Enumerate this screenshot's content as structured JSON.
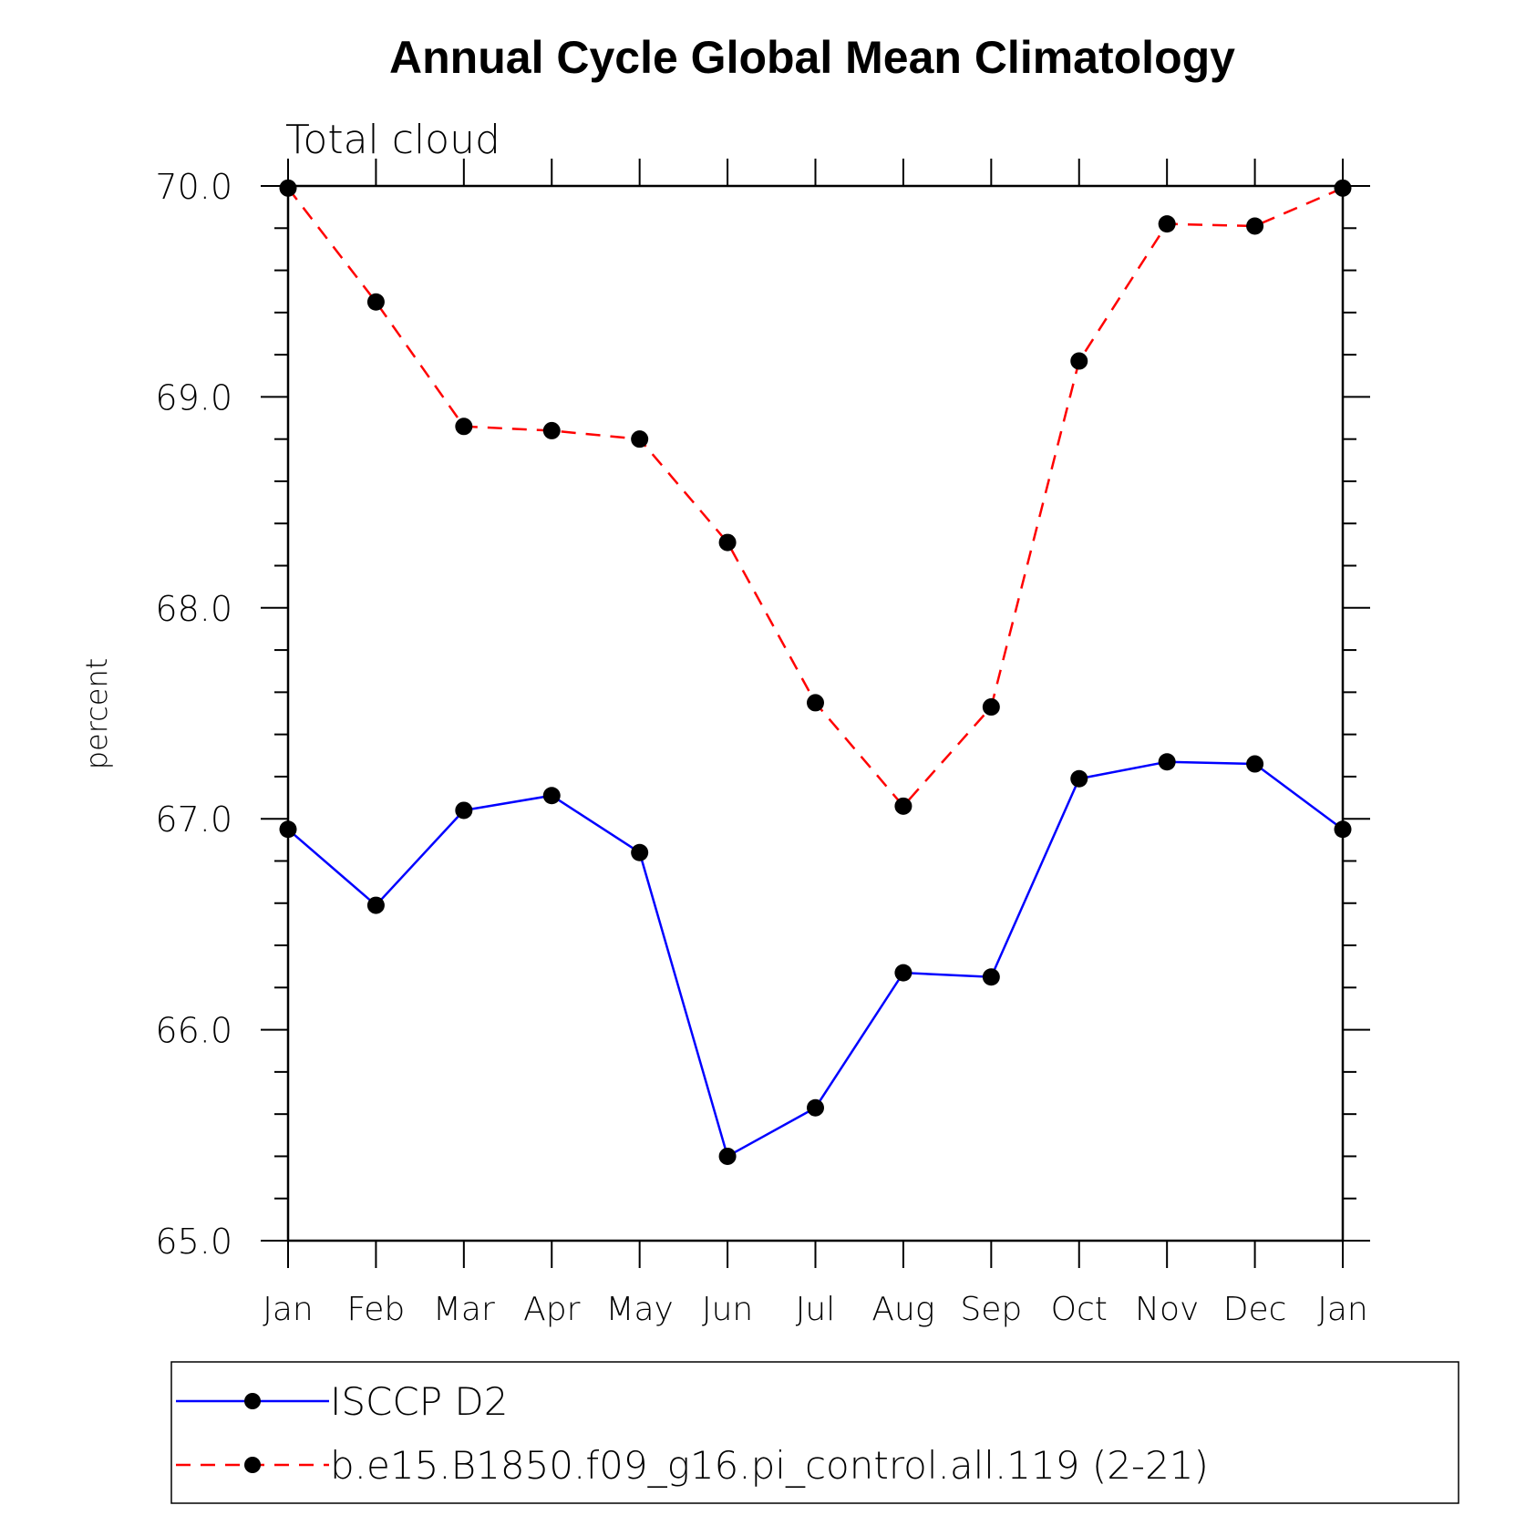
{
  "chart_data": {
    "type": "line",
    "title": "Annual Cycle Global Mean Climatology",
    "subtitle": "Total cloud",
    "ylabel": "percent",
    "xlabel": "",
    "categories": [
      "Jan",
      "Feb",
      "Mar",
      "Apr",
      "May",
      "Jun",
      "Jul",
      "Aug",
      "Sep",
      "Oct",
      "Nov",
      "Dec",
      "Jan"
    ],
    "ylim": [
      65.0,
      70.0
    ],
    "yticks": [
      65.0,
      66.0,
      67.0,
      68.0,
      69.0,
      70.0
    ],
    "ytick_labels": [
      "65.0",
      "66.0",
      "67.0",
      "68.0",
      "69.0",
      "70.0"
    ],
    "series": [
      {
        "name": "ISCCP D2",
        "color": "#0000ff",
        "dash": "solid",
        "marker": "filled-circle",
        "values": [
          66.95,
          66.59,
          67.04,
          67.11,
          66.84,
          65.4,
          65.63,
          66.27,
          66.25,
          67.19,
          67.27,
          67.26,
          66.95
        ]
      },
      {
        "name": "b.e15.B1850.f09_g16.pi_control.all.119 (2-21)",
        "color": "#ff0000",
        "dash": "dashed",
        "marker": "filled-circle",
        "values": [
          69.99,
          69.45,
          68.86,
          68.84,
          68.8,
          68.31,
          67.55,
          67.06,
          67.53,
          69.17,
          69.82,
          69.81,
          69.99
        ]
      }
    ],
    "legend_position": "bottom"
  }
}
